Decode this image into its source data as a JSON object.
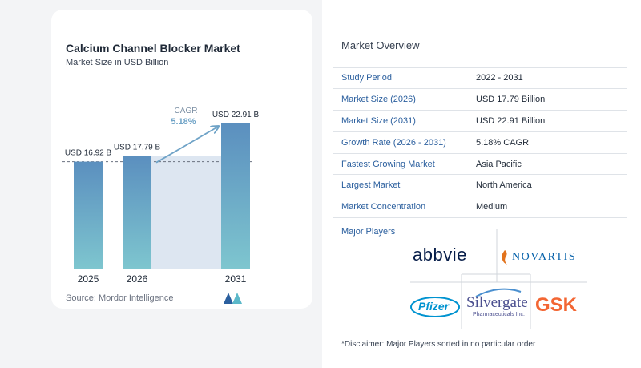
{
  "chart_data": {
    "type": "bar",
    "title": "Calcium Channel Blocker Market",
    "subtitle": "Market Size in USD Billion",
    "categories": [
      "2025",
      "2026",
      "2031"
    ],
    "values": [
      16.92,
      17.79,
      22.91
    ],
    "value_labels": [
      "USD 16.92 B",
      "USD 17.79 B",
      "USD 22.91 B"
    ],
    "cagr_label": "CAGR",
    "cagr_value": "5.18%",
    "ylim": [
      0,
      24
    ],
    "colors": {
      "bar_top": "#5b8fbf",
      "bar_bottom": "#7ec6cf",
      "band": "#dde6f1",
      "arrow": "#6fa3c7"
    }
  },
  "source": "Source:  Mordor Intelligence",
  "overview": {
    "title": "Market Overview",
    "rows": [
      {
        "label": "Study Period",
        "value": "2022 - 2031"
      },
      {
        "label": "Market Size (2026)",
        "value": "USD 17.79 Billion"
      },
      {
        "label": "Market Size (2031)",
        "value": "USD 22.91 Billion"
      },
      {
        "label": "Growth Rate (2026 - 2031)",
        "value": "5.18% CAGR"
      },
      {
        "label": "Fastest Growing Market",
        "value": "Asia Pacific"
      },
      {
        "label": "Largest Market",
        "value": "North America"
      },
      {
        "label": "Market Concentration",
        "value": "Medium"
      }
    ]
  },
  "major_players": {
    "title": "Major Players",
    "logos": {
      "abbvie": "abbvie",
      "novartis": "NOVARTIS",
      "pfizer": "Pfizer",
      "silvergate": "Silvergate",
      "silvergate_sub": "Pharmaceuticals Inc.",
      "gsk": "GSK"
    }
  },
  "disclaimer": "*Disclaimer: Major Players sorted in no particular order"
}
